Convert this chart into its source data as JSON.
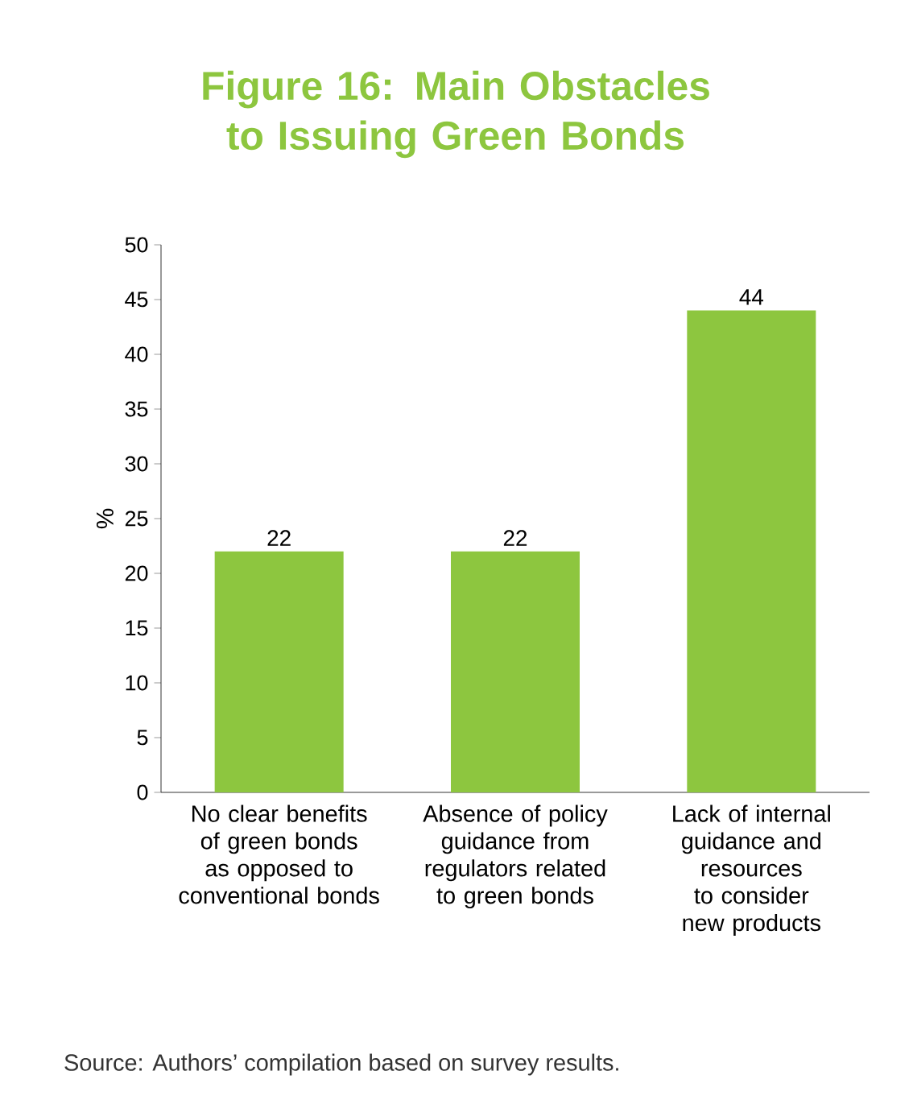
{
  "chart_data": {
    "type": "bar",
    "title": "Figure 16: Main Obstacles to Issuing Green Bonds",
    "categories": [
      "No clear benefits of green bonds as opposed to conventional bonds",
      "Absence of policy guidance from regulators related to green bonds",
      "Lack of internal guidance and resources to consider new products"
    ],
    "values": [
      22,
      22,
      44
    ],
    "color": "#8dc63f",
    "ylabel": "%",
    "ylim": [
      0,
      50
    ],
    "yticks": [
      0,
      5,
      10,
      15,
      20,
      25,
      30,
      35,
      40,
      45,
      50
    ],
    "data_labels": true,
    "annotations": [
      "Source: Authors’ compilation based on survey results."
    ]
  }
}
